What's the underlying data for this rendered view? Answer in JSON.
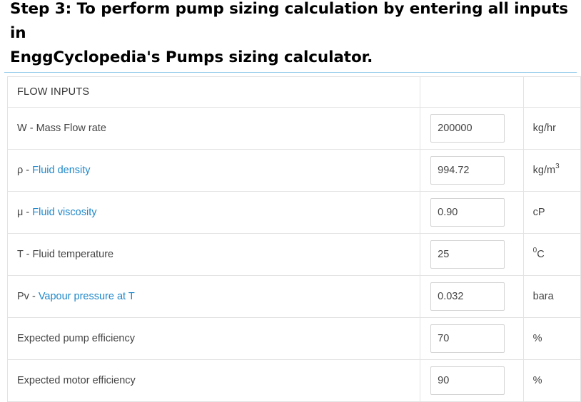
{
  "heading": {
    "line1": "Step 3: To perform pump sizing calculation by entering all inputs in",
    "line2": "EnggCyclopedia's Pumps sizing calculator."
  },
  "section": {
    "title": "FLOW INPUTS"
  },
  "rows": [
    {
      "symbol": "W - ",
      "label": "Mass Flow rate",
      "label_is_link": false,
      "value": "200000",
      "unit": "kg/hr",
      "unit_sup": ""
    },
    {
      "symbol": "ρ - ",
      "label": "Fluid density",
      "label_is_link": true,
      "value": "994.72",
      "unit": "kg/m",
      "unit_sup": "3"
    },
    {
      "symbol": "μ - ",
      "label": "Fluid viscosity",
      "label_is_link": true,
      "value": "0.90",
      "unit": "cP",
      "unit_sup": ""
    },
    {
      "symbol": "T - ",
      "label": "Fluid temperature",
      "label_is_link": false,
      "value": "25",
      "unit_pre_sup": "0",
      "unit": "C"
    },
    {
      "symbol": "Pv - ",
      "label": "Vapour pressure at T",
      "label_is_link": true,
      "value": "0.032",
      "unit": "bara",
      "unit_sup": ""
    },
    {
      "symbol": "",
      "label": "Expected pump efficiency",
      "label_is_link": false,
      "value": "70",
      "unit": "%",
      "unit_sup": ""
    },
    {
      "symbol": "",
      "label": "Expected motor efficiency",
      "label_is_link": false,
      "value": "90",
      "unit": "%",
      "unit_sup": ""
    }
  ],
  "colors": {
    "link": "#1e87c9",
    "rule": "#8ec7e8",
    "border": "#e3e3e3"
  }
}
